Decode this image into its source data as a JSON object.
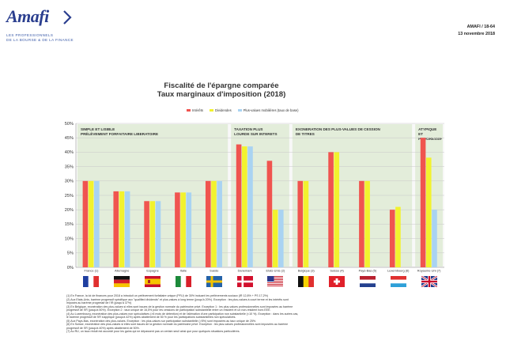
{
  "header": {
    "logo_text": "Amafi",
    "logo_tagline": [
      "LES PROFESSIONNELS",
      "DE LA BOURSE & DE LA FINANCE"
    ],
    "ref_number": "AMAFI / 18-64",
    "ref_date": "13 novembre 2018"
  },
  "colors": {
    "Intérêts": "#f0544f",
    "Dividendes": "#f2f22e",
    "Plus-values mobilières (taux de base)": "#a9d3f2",
    "plot_bg": "#f8f8f8",
    "zone_bg": "#e3edda"
  },
  "chart_data": {
    "type": "bar",
    "title": "Fiscalité de l'épargne comparée",
    "subtitle": "Taux marginaux d'imposition (2018)",
    "xlabel": "",
    "ylabel": "",
    "ylim": [
      0,
      50
    ],
    "yticks": [
      "0%",
      "5%",
      "10%",
      "15%",
      "20%",
      "25%",
      "30%",
      "35%",
      "40%",
      "45%",
      "50%"
    ],
    "grid": true,
    "legend_position": "top",
    "categories": [
      "France (1)",
      "Allemagne",
      "Espagne",
      "Italie",
      "Suède",
      "Danemark",
      "Etats-Unis (2)",
      "Belgique (3)",
      "Suisse (4)",
      "Pays-Bas (5)",
      "Luxembourg (6)",
      "Royaume-Uni (7)"
    ],
    "series": [
      {
        "name": "Intérêts",
        "values": [
          30,
          26.4,
          23,
          26,
          30,
          42.7,
          37,
          30,
          40,
          30,
          20,
          45
        ]
      },
      {
        "name": "Dividendes",
        "values": [
          30,
          26.4,
          23,
          26,
          30,
          42,
          20,
          30,
          40,
          30,
          21,
          38.1
        ]
      },
      {
        "name": "Plus-values mobilières (taux de base)",
        "values": [
          30,
          26.4,
          23,
          26,
          30,
          42,
          20,
          0,
          0,
          0,
          0,
          20
        ]
      }
    ],
    "zones": [
      {
        "label": [
          "SIMPLE ET LISIBLE",
          "PRÉLÈVEMENT FORFAITAIRE LIBERATOIRE"
        ],
        "from": 0,
        "to": 4
      },
      {
        "label": [
          "TAXATION PLUS",
          "LOURDE SUR INTERETS"
        ],
        "from": 5,
        "to": 6
      },
      {
        "label": [
          "EXONERATION DES PLUS-VALUES DE CESSION",
          "DE TITRES"
        ],
        "from": 7,
        "to": 10
      },
      {
        "label": [
          "ATYPIQUE",
          "ET",
          "PROGRESSIF"
        ],
        "from": 11,
        "to": 11
      }
    ]
  },
  "flags": [
    "france",
    "germany",
    "spain",
    "italy",
    "sweden",
    "denmark",
    "usa",
    "belgium",
    "switzerland",
    "netherlands",
    "luxembourg",
    "uk"
  ],
  "footnotes": [
    "(1) En France, la loi de finances pour 2018 a introduit un prélèvement forfaitaire unique (PFU) de 30% incluant les prélèvements sociaux (IR 12,8% + PS 17,2%)",
    "(2) Aux Etats-Unis, barème progressif spécifique aux \"qualified dividends\" et plus-values à long terme (jusqu'à 20%). Exception : les plus-values à court terme et les intérêts sont",
    "imposés au barème progressif de l'IR (jusqu'à 37%)",
    "(3) En Belgique, exonération des plus-values si elles sont issues de la gestion normale du patrimoine privé. Exception 1 : les plus-values professionnelles sont imposées au barème",
    "progressif de l'IR (jusqu'à 50%). Exception 2 : taux unique de 16,5% pour les cessions de participation substantielle entre un résident et un non-résident hors EEE.",
    "(4) Au Luxembourg, exonération des plus-values non spéculatives (>6 mois de détention) et de l'aliénation d'une participation non substantielle (<10 %). Exception : dans les autres cas,",
    "le barème progressif de l'IR s'applique (jusqu'à 42%) après abattement de 50 % pour les participations substantielles non spéculatives.",
    "(5) Aux Pays-Bas, exonération des plus-values. Exception : les plus-values sur participation substantielle (>5%) sont imposées au taux unique de 25%.",
    "(6) En Suisse, exonération des plus-values si elles sont issues de la gestion normale du patrimoine privé. Exception : les plus-values professionnelles sont imposées au barème",
    "progressif de l'IR (jusqu'à 40%) après abattement de 50%.",
    "(7) Au RU, un taux réduit est accordé pour les gains qui ne dépassent pas un certain seuil ainsi que pour quelques situations particulières."
  ]
}
